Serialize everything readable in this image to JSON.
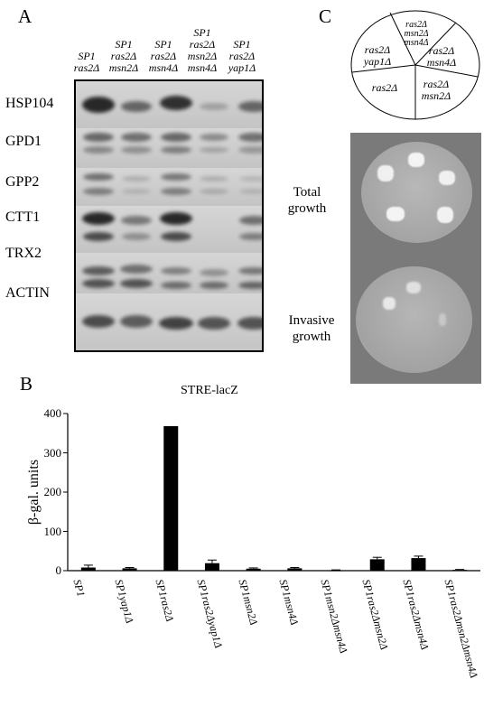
{
  "panel_a": {
    "letter": "A",
    "lanes": [
      [
        "SP1",
        "ras2Δ"
      ],
      [
        "SP1",
        "ras2Δ",
        "msn2Δ"
      ],
      [
        "SP1",
        "ras2Δ",
        "msn4Δ"
      ],
      [
        "SP1",
        "ras2Δ",
        "msn2Δ",
        "msn4Δ"
      ],
      [
        "SP1",
        "ras2Δ",
        "yap1Δ"
      ]
    ],
    "bands": [
      "HSP104",
      "GPD1",
      "GPP2",
      "CTT1",
      "TRX2",
      "ACTIN"
    ]
  },
  "panel_c": {
    "letter": "C",
    "pie_labels": [
      [
        "ras2Δ",
        "msn2Δ",
        "msn4Δ"
      ],
      [
        "ras2Δ",
        "msn4Δ"
      ],
      [
        "ras2Δ",
        "msn2Δ"
      ],
      [
        "ras2Δ"
      ],
      [
        "ras2Δ",
        "yap1Δ"
      ]
    ],
    "total_growth": [
      "Total",
      "growth"
    ],
    "invasive_growth": [
      "Invasive",
      "growth"
    ]
  },
  "panel_b": {
    "letter": "B",
    "title": "STRE-lacZ",
    "ylabel": "β-gal. units"
  },
  "chart_data": {
    "type": "bar",
    "title": "STRE-lacZ",
    "ylabel": "β-gal. units",
    "xlabel": "",
    "ylim": [
      0,
      400
    ],
    "yticks": [
      0,
      100,
      200,
      300,
      400
    ],
    "categories": [
      "SP1",
      "SP1yap1Δ",
      "SP1ras2Δ",
      "SP1ras2Δyap1Δ",
      "SP1msn2Δ",
      "SP1msn4Δ",
      "SP1msn2Δmsn4Δ",
      "SP1ras2Δmsn2Δ",
      "SP1ras2Δmsn4Δ",
      "SP1ras2Δmsn2Δmsn4Δ"
    ],
    "values": [
      8,
      6,
      368,
      19,
      5,
      6,
      1,
      29,
      32,
      2
    ],
    "errors": [
      6,
      2,
      0,
      8,
      2,
      2,
      1,
      5,
      5,
      1
    ],
    "grid": false
  }
}
